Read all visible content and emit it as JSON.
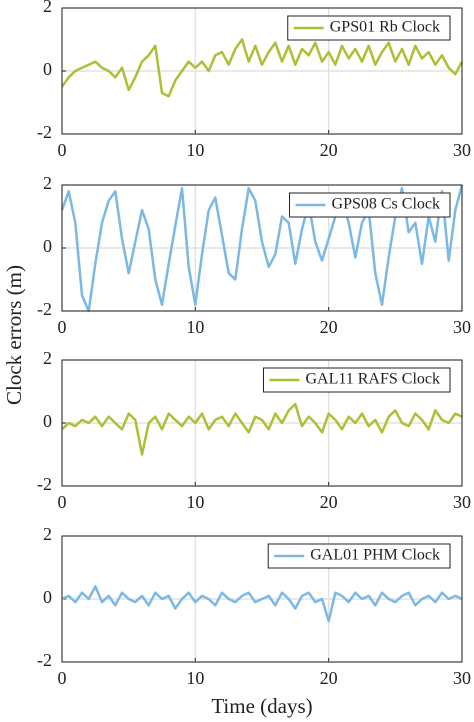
{
  "ylabel": "Clock errors (m)",
  "xlabel": "Time (days)",
  "chart_data": [
    {
      "type": "line",
      "xlim": [
        0,
        30
      ],
      "ylim": [
        -2,
        2
      ],
      "xticks": [
        0,
        10,
        20,
        30
      ],
      "yticks": [
        -2,
        0,
        2
      ],
      "grid": true,
      "legend": "upper right",
      "x": [
        0,
        0.5,
        1,
        1.5,
        2,
        2.5,
        3,
        3.5,
        4,
        4.5,
        5,
        5.5,
        6,
        6.5,
        7,
        7.5,
        8,
        8.5,
        9,
        9.5,
        10,
        10.5,
        11,
        11.5,
        12,
        12.5,
        13,
        13.5,
        14,
        14.5,
        15,
        15.5,
        16,
        16.5,
        17,
        17.5,
        18,
        18.5,
        19,
        19.5,
        20,
        20.5,
        21,
        21.5,
        22,
        22.5,
        23,
        23.5,
        24,
        24.5,
        25,
        25.5,
        26,
        26.5,
        27,
        27.5,
        28,
        28.5,
        29,
        29.5,
        30
      ],
      "series": [
        {
          "name": "GPS01 Rb Clock",
          "color": "#acc036",
          "values": [
            -0.5,
            -0.2,
            0.0,
            0.1,
            0.2,
            0.3,
            0.1,
            0.0,
            -0.2,
            0.1,
            -0.6,
            -0.2,
            0.3,
            0.5,
            0.8,
            -0.7,
            -0.8,
            -0.3,
            0.0,
            0.3,
            0.1,
            0.3,
            0.0,
            0.5,
            0.6,
            0.2,
            0.7,
            1.0,
            0.3,
            0.8,
            0.2,
            0.6,
            0.9,
            0.3,
            0.8,
            0.2,
            0.7,
            0.5,
            0.9,
            0.3,
            0.6,
            0.2,
            0.8,
            0.4,
            0.7,
            0.3,
            0.8,
            0.2,
            0.6,
            0.9,
            0.3,
            0.7,
            0.2,
            0.8,
            0.4,
            0.6,
            0.2,
            0.5,
            0.1,
            -0.1,
            0.3
          ]
        }
      ]
    },
    {
      "type": "line",
      "xlim": [
        0,
        30
      ],
      "ylim": [
        -2,
        2
      ],
      "xticks": [
        0,
        10,
        20,
        30
      ],
      "yticks": [
        -2,
        0,
        2
      ],
      "grid": true,
      "legend": "upper right",
      "x": [
        0,
        0.5,
        1,
        1.5,
        2,
        2.5,
        3,
        3.5,
        4,
        4.5,
        5,
        5.5,
        6,
        6.5,
        7,
        7.5,
        8,
        8.5,
        9,
        9.5,
        10,
        10.5,
        11,
        11.5,
        12,
        12.5,
        13,
        13.5,
        14,
        14.5,
        15,
        15.5,
        16,
        16.5,
        17,
        17.5,
        18,
        18.5,
        19,
        19.5,
        20,
        20.5,
        21,
        21.5,
        22,
        22.5,
        23,
        23.5,
        24,
        24.5,
        25,
        25.5,
        26,
        26.5,
        27,
        27.5,
        28,
        28.5,
        29,
        29.5,
        30
      ],
      "series": [
        {
          "name": "GPS08 Cs Clock",
          "color": "#7cb8e4",
          "values": [
            1.2,
            1.8,
            0.8,
            -1.5,
            -2,
            -0.5,
            0.8,
            1.5,
            1.8,
            0.3,
            -0.8,
            0.2,
            1.2,
            0.6,
            -1.0,
            -1.8,
            -0.5,
            0.7,
            1.9,
            -0.6,
            -1.8,
            -0.2,
            1.2,
            1.6,
            0.4,
            -0.8,
            -1.0,
            0.6,
            1.9,
            1.5,
            0.2,
            -0.6,
            -0.2,
            1.0,
            0.8,
            -0.5,
            0.6,
            1.4,
            0.2,
            -0.4,
            0.3,
            1.0,
            1.5,
            0.8,
            -0.3,
            0.8,
            1.2,
            -0.8,
            -1.8,
            -0.3,
            1.0,
            1.9,
            0.5,
            0.8,
            -0.5,
            1.0,
            0.2,
            1.8,
            -0.4,
            1.2,
            2.0
          ]
        }
      ]
    },
    {
      "type": "line",
      "xlim": [
        0,
        30
      ],
      "ylim": [
        -2,
        2
      ],
      "xticks": [
        0,
        10,
        20,
        30
      ],
      "yticks": [
        -2,
        0,
        2
      ],
      "grid": true,
      "legend": "upper right",
      "x": [
        0,
        0.5,
        1,
        1.5,
        2,
        2.5,
        3,
        3.5,
        4,
        4.5,
        5,
        5.5,
        6,
        6.5,
        7,
        7.5,
        8,
        8.5,
        9,
        9.5,
        10,
        10.5,
        11,
        11.5,
        12,
        12.5,
        13,
        13.5,
        14,
        14.5,
        15,
        15.5,
        16,
        16.5,
        17,
        17.5,
        18,
        18.5,
        19,
        19.5,
        20,
        20.5,
        21,
        21.5,
        22,
        22.5,
        23,
        23.5,
        24,
        24.5,
        25,
        25.5,
        26,
        26.5,
        27,
        27.5,
        28,
        28.5,
        29,
        29.5,
        30
      ],
      "series": [
        {
          "name": "GAL11 RAFS Clock",
          "color": "#acc036",
          "values": [
            -0.2,
            0.0,
            -0.1,
            0.1,
            0.0,
            0.2,
            -0.1,
            0.2,
            0.0,
            -0.2,
            0.3,
            0.1,
            -1.0,
            0.0,
            0.2,
            -0.2,
            0.3,
            0.1,
            -0.1,
            0.2,
            0.0,
            0.3,
            -0.2,
            0.1,
            0.2,
            -0.1,
            0.3,
            0.0,
            -0.3,
            0.2,
            0.1,
            -0.2,
            0.3,
            0.0,
            0.4,
            0.6,
            -0.1,
            0.2,
            0.0,
            -0.3,
            0.3,
            0.1,
            -0.2,
            0.2,
            0.0,
            0.3,
            -0.1,
            0.1,
            -0.3,
            0.2,
            0.4,
            0.0,
            -0.1,
            0.3,
            0.1,
            -0.2,
            0.4,
            0.1,
            0.0,
            0.3,
            0.2
          ]
        }
      ]
    },
    {
      "type": "line",
      "xlim": [
        0,
        30
      ],
      "ylim": [
        -2,
        2
      ],
      "xticks": [
        0,
        10,
        20,
        30
      ],
      "yticks": [
        -2,
        0,
        2
      ],
      "grid": true,
      "legend": "upper right",
      "x": [
        0,
        0.5,
        1,
        1.5,
        2,
        2.5,
        3,
        3.5,
        4,
        4.5,
        5,
        5.5,
        6,
        6.5,
        7,
        7.5,
        8,
        8.5,
        9,
        9.5,
        10,
        10.5,
        11,
        11.5,
        12,
        12.5,
        13,
        13.5,
        14,
        14.5,
        15,
        15.5,
        16,
        16.5,
        17,
        17.5,
        18,
        18.5,
        19,
        19.5,
        20,
        20.5,
        21,
        21.5,
        22,
        22.5,
        23,
        23.5,
        24,
        24.5,
        25,
        25.5,
        26,
        26.5,
        27,
        27.5,
        28,
        28.5,
        29,
        29.5,
        30
      ],
      "series": [
        {
          "name": "GAL01 PHM Clock",
          "color": "#7cb8e4",
          "values": [
            0.0,
            0.1,
            -0.1,
            0.2,
            0.0,
            0.4,
            -0.1,
            0.1,
            -0.2,
            0.2,
            0.0,
            -0.1,
            0.1,
            -0.2,
            0.2,
            0.0,
            0.1,
            -0.3,
            0.0,
            0.2,
            -0.1,
            0.1,
            0.0,
            -0.2,
            0.2,
            0.0,
            -0.1,
            0.1,
            0.2,
            -0.1,
            0.0,
            0.1,
            -0.2,
            0.2,
            0.0,
            -0.3,
            0.1,
            0.2,
            -0.1,
            0.0,
            -0.7,
            0.2,
            0.1,
            -0.1,
            0.2,
            0.0,
            0.1,
            -0.2,
            0.2,
            0.0,
            -0.1,
            0.1,
            0.2,
            -0.2,
            0.0,
            0.1,
            -0.1,
            0.2,
            0.0,
            0.1,
            0.0
          ]
        }
      ]
    }
  ]
}
